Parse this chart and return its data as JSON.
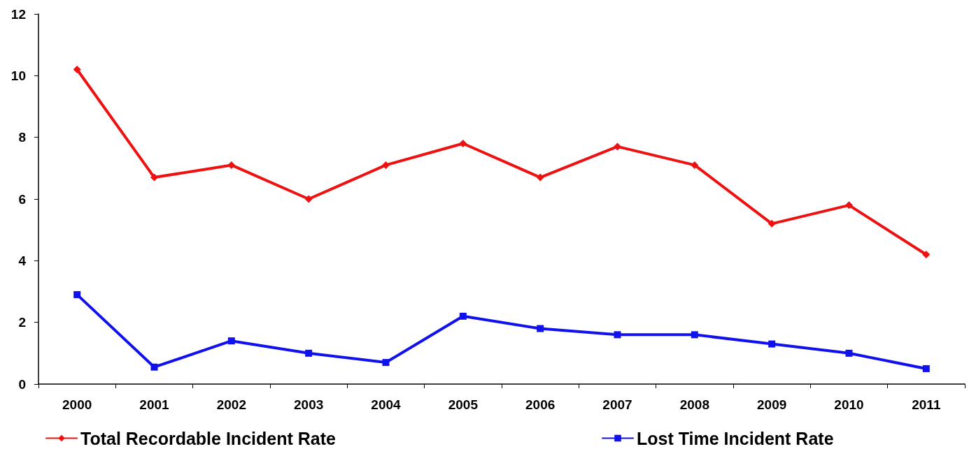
{
  "chart_data": {
    "type": "line",
    "categories": [
      "2000",
      "2001",
      "2002",
      "2003",
      "2004",
      "2005",
      "2006",
      "2007",
      "2008",
      "2009",
      "2010",
      "2011"
    ],
    "series": [
      {
        "name": "Total Recordable Incident Rate",
        "color": "#ee1111",
        "marker": "diamond",
        "values": [
          10.2,
          6.7,
          7.1,
          6.0,
          7.1,
          7.8,
          6.7,
          7.7,
          7.1,
          5.2,
          5.8,
          4.2
        ]
      },
      {
        "name": "Lost Time Incident Rate",
        "color": "#1111ee",
        "marker": "square",
        "values": [
          2.9,
          0.55,
          1.4,
          1.0,
          0.7,
          2.2,
          1.8,
          1.6,
          1.6,
          1.3,
          1.0,
          0.5
        ]
      }
    ],
    "ylim": [
      0,
      12
    ],
    "yticks": [
      0,
      2,
      4,
      6,
      8,
      10,
      12
    ],
    "grid": false,
    "legend": "bottom",
    "line_style": "solid"
  }
}
